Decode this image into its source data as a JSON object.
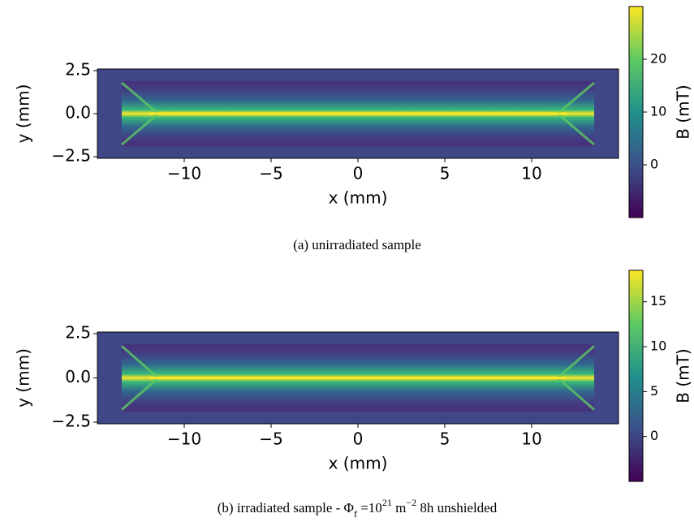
{
  "chart_data": [
    {
      "type": "heatmap",
      "colormap": "viridis",
      "xlabel": "x (mm)",
      "ylabel": "y (mm)",
      "colorbar_label": "B (mT)",
      "xlim": [
        -15,
        15
      ],
      "xticks": [
        {
          "value": -10,
          "label": "−10"
        },
        {
          "value": -5,
          "label": "−5"
        },
        0,
        5,
        10
      ],
      "ylim": [
        -2.5,
        2.5
      ],
      "yticks": [
        {
          "value": -2.5,
          "label": "−2.5"
        },
        {
          "value": 0,
          "label": "0.0"
        },
        2.5
      ],
      "clim": [
        -10,
        30
      ],
      "cticks": [
        0,
        10,
        20
      ],
      "caption": [
        "(a) unirradiated sample"
      ]
    },
    {
      "type": "heatmap",
      "colormap": "viridis",
      "xlabel": "x (mm)",
      "ylabel": "y (mm)",
      "colorbar_label": "B (mT)",
      "xlim": [
        -15,
        15
      ],
      "xticks": [
        {
          "value": -10,
          "label": "−10"
        },
        {
          "value": -5,
          "label": "−5"
        },
        0,
        5,
        10
      ],
      "ylim": [
        -2.5,
        2.5
      ],
      "yticks": [
        {
          "value": -2.5,
          "label": "−2.5"
        },
        {
          "value": 0,
          "label": "0.0"
        },
        2.5
      ],
      "clim": [
        -5,
        18.5
      ],
      "cticks": [
        0,
        5,
        10,
        15
      ],
      "caption": [
        "(b) irradiated sample - Φ",
        "f",
        " =10",
        "21",
        " m",
        "−2",
        " 8h unshielded"
      ]
    }
  ]
}
